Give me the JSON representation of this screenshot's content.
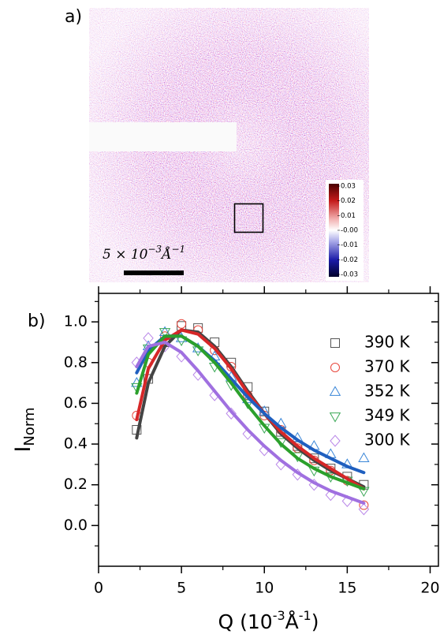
{
  "image": {
    "label": "a)",
    "scale_bar_label": [
      "5 × 10",
      "−3",
      "Å",
      "−1"
    ],
    "colorbar": {
      "clim": [
        -0.03,
        0.03
      ],
      "ticks": [
        0.03,
        0.02,
        0.01,
        {
          "value": 0,
          "label": "-0.00"
        },
        -0.01,
        -0.02,
        -0.03
      ]
    }
  },
  "chart_data": {
    "type": "scatter",
    "panel_label": "b)",
    "xlabel": [
      "Q (10",
      "-3",
      "Å",
      "-1",
      ")"
    ],
    "ylabel": [
      "I",
      "Norm"
    ],
    "xlim": [
      0,
      20.5
    ],
    "ylim": [
      -0.2,
      1.14
    ],
    "xticks": [
      0,
      5,
      10,
      15,
      20
    ],
    "yticks": [
      {
        "value": 0,
        "label": "0.0"
      },
      0.2,
      0.4,
      0.6,
      0.8,
      {
        "value": 1,
        "label": "1.0"
      }
    ],
    "xminorticks": [
      2.5,
      7.5,
      12.5,
      17.5
    ],
    "yminorticks": [
      -0.1,
      0.1,
      0.3,
      0.5,
      0.7,
      0.9,
      1.1
    ],
    "legend": "upper right",
    "x": [
      2.3,
      3,
      4,
      5,
      6,
      7,
      8,
      9,
      10,
      11,
      12,
      13,
      14,
      15,
      16
    ],
    "series": [
      {
        "name": "390 K",
        "color": "#555555",
        "line_color": "#444444",
        "marker": "square",
        "values": [
          0.47,
          0.72,
          0.9,
          0.98,
          0.97,
          0.9,
          0.8,
          0.68,
          0.56,
          0.46,
          0.39,
          0.33,
          0.28,
          0.24,
          0.2
        ],
        "fit": [
          0.43,
          0.7,
          0.88,
          0.96,
          0.95,
          0.88,
          0.78,
          0.66,
          0.55,
          0.45,
          0.38,
          0.32,
          0.27,
          0.23,
          0.19
        ]
      },
      {
        "name": "370 K",
        "color": "#e8463c",
        "line_color": "#d62728",
        "marker": "circle",
        "values": [
          0.54,
          0.8,
          0.93,
          0.99,
          0.96,
          0.86,
          0.78,
          0.64,
          0.54,
          0.47,
          0.38,
          0.32,
          0.27,
          0.22,
          0.1
        ],
        "fit": [
          0.52,
          0.77,
          0.91,
          0.96,
          0.94,
          0.87,
          0.77,
          0.65,
          0.55,
          0.46,
          0.39,
          0.33,
          0.28,
          0.23,
          0.18
        ]
      },
      {
        "name": "352 K",
        "color": "#3a86d8",
        "line_color": "#1f5fbf",
        "marker": "triangle-up",
        "values": [
          0.7,
          0.88,
          0.95,
          0.92,
          0.87,
          0.83,
          0.73,
          0.62,
          0.56,
          0.5,
          0.43,
          0.39,
          0.35,
          0.3,
          0.33
        ],
        "fit": [
          0.75,
          0.86,
          0.93,
          0.93,
          0.88,
          0.81,
          0.72,
          0.63,
          0.55,
          0.48,
          0.42,
          0.37,
          0.33,
          0.29,
          0.26
        ]
      },
      {
        "name": "349 K",
        "color": "#3aa856",
        "line_color": "#2ca02c",
        "marker": "triangle-down",
        "values": [
          0.68,
          0.87,
          0.95,
          0.91,
          0.86,
          0.78,
          0.69,
          0.6,
          0.48,
          0.41,
          0.34,
          0.27,
          0.24,
          0.22,
          0.17
        ],
        "fit": [
          0.65,
          0.84,
          0.93,
          0.93,
          0.88,
          0.8,
          0.7,
          0.59,
          0.49,
          0.4,
          0.33,
          0.28,
          0.24,
          0.21,
          0.18
        ]
      },
      {
        "name": "300 K",
        "color": "#b987e8",
        "line_color": "#a070e0",
        "marker": "diamond",
        "values": [
          0.8,
          0.92,
          0.88,
          0.83,
          0.74,
          0.64,
          0.55,
          0.45,
          0.37,
          0.3,
          0.25,
          0.2,
          0.15,
          0.12,
          0.08
        ],
        "fit": [
          0.78,
          0.88,
          0.9,
          0.85,
          0.76,
          0.66,
          0.56,
          0.47,
          0.39,
          0.32,
          0.26,
          0.21,
          0.17,
          0.14,
          0.11
        ]
      }
    ]
  }
}
